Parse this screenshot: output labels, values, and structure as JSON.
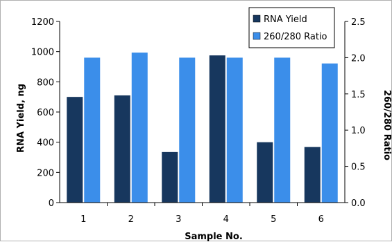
{
  "chart_data": {
    "type": "bar",
    "categories": [
      "1",
      "2",
      "3",
      "4",
      "5",
      "6"
    ],
    "xlabel": "Sample No.",
    "series": [
      {
        "name": "RNA Yield",
        "axis": "left",
        "color": "#17375e",
        "values": [
          700,
          710,
          335,
          975,
          400,
          368
        ]
      },
      {
        "name": "260/280 Ratio",
        "axis": "right",
        "color": "#3b8eea",
        "values": [
          2.0,
          2.07,
          2.0,
          2.0,
          2.0,
          1.92
        ]
      }
    ],
    "y_left": {
      "label": "RNA Yield, ng",
      "range": [
        0,
        1200
      ],
      "ticks": [
        "0",
        "200",
        "400",
        "600",
        "800",
        "1000",
        "1200"
      ]
    },
    "y_right": {
      "label": "260/280 Ratio",
      "range": [
        0,
        2.5
      ],
      "ticks": [
        "0.0",
        "0.5",
        "1.0",
        "1.5",
        "2.0",
        "2.5"
      ]
    },
    "grid": false,
    "legend_position": "top-right"
  }
}
